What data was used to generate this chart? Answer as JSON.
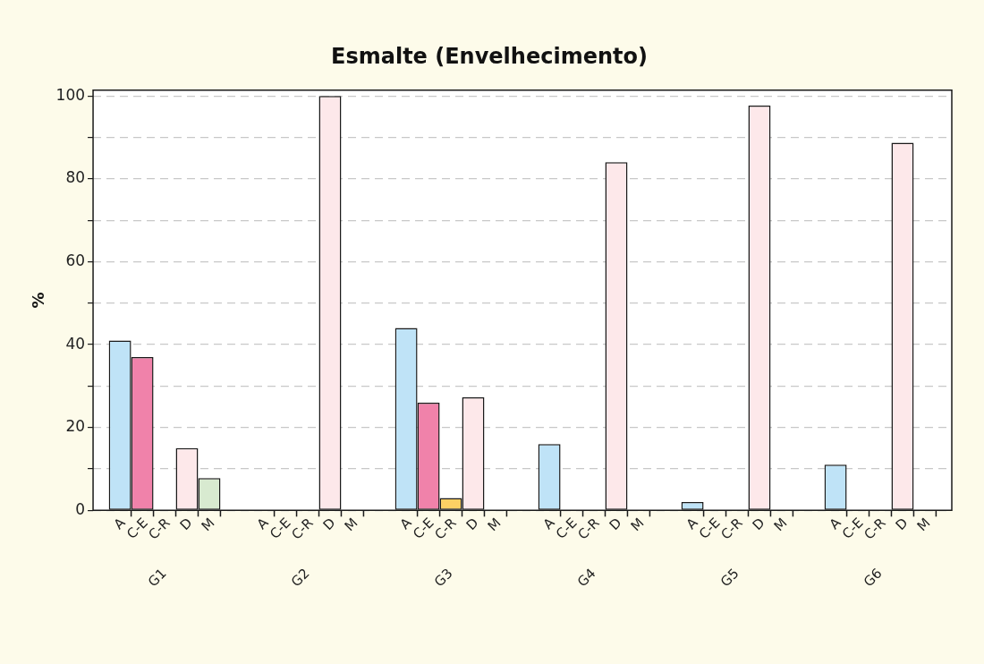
{
  "chart_data": {
    "type": "bar",
    "title": "Esmalte (Envelhecimento)",
    "ylabel": "%",
    "categories": [
      "G1",
      "G2",
      "G3",
      "G4",
      "G5",
      "G6"
    ],
    "series": [
      {
        "name": "A",
        "color": "#bfe3f7",
        "values": [
          41,
          0,
          44,
          16,
          2,
          11
        ]
      },
      {
        "name": "C-E",
        "color": "#f082aa",
        "values": [
          37,
          0,
          26,
          0,
          0,
          0
        ]
      },
      {
        "name": "C-R",
        "color": "#fcd064",
        "values": [
          0,
          0,
          3,
          0,
          0,
          0
        ]
      },
      {
        "name": "D",
        "color": "#fde8ea",
        "values": [
          15,
          100,
          27.3,
          84,
          97.7,
          88.7
        ]
      },
      {
        "name": "M",
        "color": "#d8ead0",
        "values": [
          7.8,
          0,
          0,
          0,
          0,
          0
        ]
      }
    ],
    "ylim": [
      0,
      101.4
    ],
    "yticks": [
      0,
      {
        "value": 10,
        "label": null
      },
      20,
      {
        "value": 30,
        "label": null
      },
      40,
      {
        "value": 50,
        "label": null
      },
      60,
      {
        "value": 70,
        "label": null
      },
      80,
      {
        "value": 90,
        "label": null
      },
      100
    ],
    "grid": "y",
    "legend": false
  }
}
